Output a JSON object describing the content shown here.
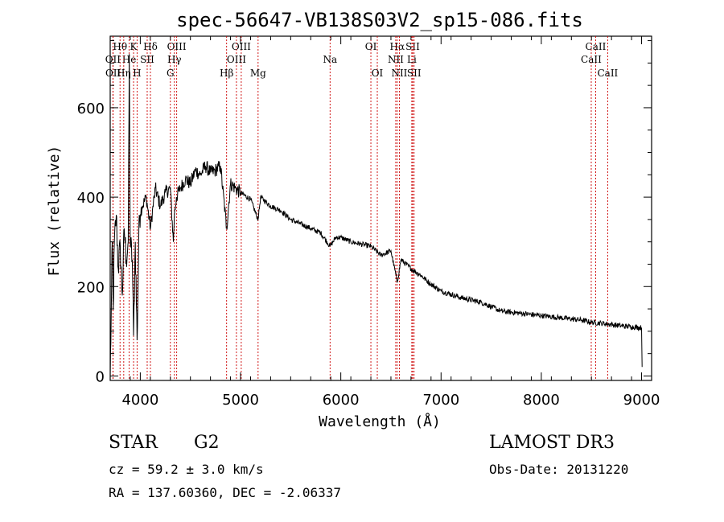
{
  "chart_data": {
    "type": "line",
    "title": "spec-56647-VB138S03V2_sp15-086.fits",
    "xlabel": "Wavelength (Å)",
    "ylabel": "Flux (relative)",
    "xlim": [
      3700,
      9100
    ],
    "ylim": [
      -10,
      760
    ],
    "x_ticks": [
      4000,
      5000,
      6000,
      7000,
      8000,
      9000
    ],
    "x_tick_labels": [
      "4000",
      "5000",
      "6000",
      "7000",
      "8000",
      "9000"
    ],
    "y_ticks": [
      0,
      200,
      400,
      600
    ],
    "y_tick_labels": [
      "0",
      "200",
      "400",
      "600"
    ],
    "grid": false,
    "series": [
      {
        "name": "flux",
        "x": [
          3700,
          3710,
          3720,
          3730,
          3740,
          3760,
          3780,
          3800,
          3820,
          3840,
          3860,
          3880,
          3890,
          3900,
          3920,
          3933,
          3950,
          3968,
          3990,
          4020,
          4060,
          4101,
          4150,
          4200,
          4250,
          4300,
          4330,
          4340,
          4360,
          4400,
          4450,
          4500,
          4550,
          4600,
          4650,
          4700,
          4750,
          4800,
          4861,
          4900,
          4950,
          5000,
          5100,
          5175,
          5200,
          5300,
          5400,
          5500,
          5600,
          5700,
          5800,
          5893,
          5950,
          6000,
          6100,
          6200,
          6300,
          6400,
          6500,
          6563,
          6600,
          6700,
          6800,
          6900,
          7000,
          7200,
          7400,
          7600,
          7800,
          8000,
          8200,
          8400,
          8500,
          8600,
          8700,
          8800,
          8900,
          9000,
          9005
        ],
        "y": [
          0,
          130,
          300,
          150,
          290,
          360,
          240,
          290,
          180,
          330,
          260,
          300,
          720,
          300,
          260,
          90,
          300,
          80,
          360,
          380,
          400,
          330,
          420,
          380,
          410,
          420,
          300,
          360,
          400,
          420,
          440,
          430,
          460,
          450,
          470,
          455,
          460,
          470,
          330,
          430,
          420,
          410,
          395,
          350,
          400,
          380,
          370,
          350,
          340,
          330,
          320,
          290,
          310,
          310,
          300,
          295,
          290,
          270,
          280,
          210,
          260,
          240,
          225,
          205,
          190,
          175,
          165,
          145,
          140,
          135,
          130,
          125,
          120,
          118,
          115,
          112,
          110,
          108,
          20
        ]
      }
    ],
    "spectral_lines": [
      {
        "label": "Hθ",
        "x": 3798,
        "row": 1
      },
      {
        "label": "OII",
        "x": 3727,
        "row": 2
      },
      {
        "label": "OII",
        "x": 3729,
        "row": 3
      },
      {
        "label": "He",
        "x": 3889,
        "row": 2
      },
      {
        "label": "Hη",
        "x": 3835,
        "row": 3
      },
      {
        "label": "K",
        "x": 3933,
        "row": 1
      },
      {
        "label": "SII",
        "x": 4069,
        "row": 2
      },
      {
        "label": "H",
        "x": 3968,
        "row": 3
      },
      {
        "label": "Hδ",
        "x": 4101,
        "row": 1
      },
      {
        "label": "OIII",
        "x": 4363,
        "row": 1
      },
      {
        "label": "Hγ",
        "x": 4340,
        "row": 2
      },
      {
        "label": "G",
        "x": 4300,
        "row": 3
      },
      {
        "label": "OIII",
        "x": 5007,
        "row": 1
      },
      {
        "label": "OIII",
        "x": 4959,
        "row": 2
      },
      {
        "label": "Hβ",
        "x": 4861,
        "row": 3
      },
      {
        "label": "Mg",
        "x": 5175,
        "row": 3
      },
      {
        "label": "Na",
        "x": 5893,
        "row": 2
      },
      {
        "label": "OI",
        "x": 6300,
        "row": 1
      },
      {
        "label": "OI",
        "x": 6364,
        "row": 3
      },
      {
        "label": "Hα",
        "x": 6563,
        "row": 1
      },
      {
        "label": "NII",
        "x": 6548,
        "row": 2
      },
      {
        "label": "NII",
        "x": 6584,
        "row": 3
      },
      {
        "label": "SII",
        "x": 6717,
        "row": 1
      },
      {
        "label": "Li",
        "x": 6708,
        "row": 2
      },
      {
        "label": "SII",
        "x": 6731,
        "row": 3
      },
      {
        "label": "CaII",
        "x": 8542,
        "row": 1
      },
      {
        "label": "CaII",
        "x": 8498,
        "row": 2
      },
      {
        "label": "CaII",
        "x": 8662,
        "row": 3
      }
    ]
  },
  "info": {
    "object_class": "STAR",
    "subclass": "G2",
    "survey": "LAMOST DR3",
    "redshift": "cz = 59.2 ± 3.0 km/s",
    "obs_date": "Obs-Date: 20131220",
    "coords": "RA = 137.60360, DEC =  -2.06337"
  }
}
